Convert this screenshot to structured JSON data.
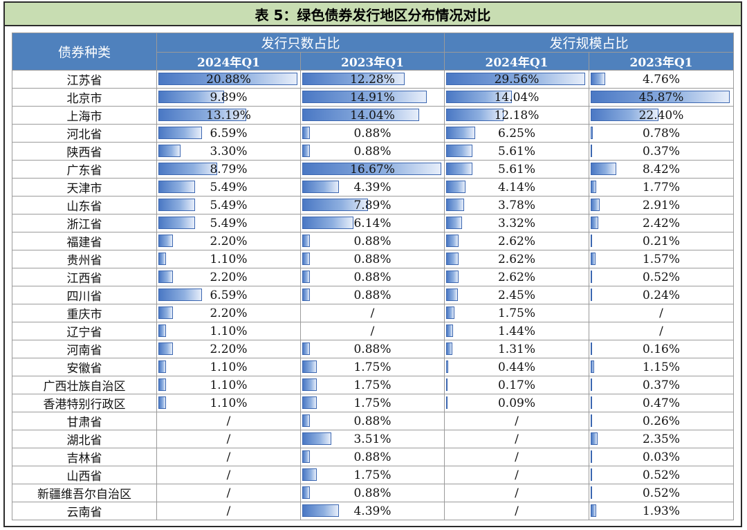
{
  "title": "表 5：绿色债券发行地区分布情况对比",
  "headers": {
    "region": "债券种类",
    "count_group": "发行只数占比",
    "scale_group": "发行规模占比",
    "count_2024": "2024年Q1",
    "count_2023": "2023年Q1",
    "scale_2024": "2024年Q1",
    "scale_2023": "2023年Q1"
  },
  "rows": [
    {
      "region": "江苏省",
      "count_2024": "20.88%",
      "count_2023": "12.28%",
      "scale_2024": "29.56%",
      "scale_2023": "4.76%"
    },
    {
      "region": "北京市",
      "count_2024": "9.89%",
      "count_2023": "14.91%",
      "scale_2024": "14.04%",
      "scale_2023": "45.87%"
    },
    {
      "region": "上海市",
      "count_2024": "13.19%",
      "count_2023": "14.04%",
      "scale_2024": "12.18%",
      "scale_2023": "22.40%"
    },
    {
      "region": "河北省",
      "count_2024": "6.59%",
      "count_2023": "0.88%",
      "scale_2024": "6.25%",
      "scale_2023": "0.78%"
    },
    {
      "region": "陕西省",
      "count_2024": "3.30%",
      "count_2023": "0.88%",
      "scale_2024": "5.61%",
      "scale_2023": "0.37%"
    },
    {
      "region": "广东省",
      "count_2024": "8.79%",
      "count_2023": "16.67%",
      "scale_2024": "5.61%",
      "scale_2023": "8.42%"
    },
    {
      "region": "天津市",
      "count_2024": "5.49%",
      "count_2023": "4.39%",
      "scale_2024": "4.14%",
      "scale_2023": "1.77%"
    },
    {
      "region": "山东省",
      "count_2024": "5.49%",
      "count_2023": "7.89%",
      "scale_2024": "3.78%",
      "scale_2023": "2.91%"
    },
    {
      "region": "浙江省",
      "count_2024": "5.49%",
      "count_2023": "6.14%",
      "scale_2024": "3.32%",
      "scale_2023": "2.42%"
    },
    {
      "region": "福建省",
      "count_2024": "2.20%",
      "count_2023": "0.88%",
      "scale_2024": "2.62%",
      "scale_2023": "0.21%"
    },
    {
      "region": "贵州省",
      "count_2024": "1.10%",
      "count_2023": "0.88%",
      "scale_2024": "2.62%",
      "scale_2023": "1.57%"
    },
    {
      "region": "江西省",
      "count_2024": "2.20%",
      "count_2023": "0.88%",
      "scale_2024": "2.62%",
      "scale_2023": "0.52%"
    },
    {
      "region": "四川省",
      "count_2024": "6.59%",
      "count_2023": "0.88%",
      "scale_2024": "2.45%",
      "scale_2023": "0.24%"
    },
    {
      "region": "重庆市",
      "count_2024": "2.20%",
      "count_2023": "/",
      "scale_2024": "1.75%",
      "scale_2023": "/"
    },
    {
      "region": "辽宁省",
      "count_2024": "1.10%",
      "count_2023": "/",
      "scale_2024": "1.44%",
      "scale_2023": "/"
    },
    {
      "region": "河南省",
      "count_2024": "2.20%",
      "count_2023": "0.88%",
      "scale_2024": "1.31%",
      "scale_2023": "0.16%"
    },
    {
      "region": "安徽省",
      "count_2024": "1.10%",
      "count_2023": "1.75%",
      "scale_2024": "0.44%",
      "scale_2023": "1.15%"
    },
    {
      "region": "广西壮族自治区",
      "count_2024": "1.10%",
      "count_2023": "1.75%",
      "scale_2024": "0.17%",
      "scale_2023": "0.37%"
    },
    {
      "region": "香港特别行政区",
      "count_2024": "1.10%",
      "count_2023": "1.75%",
      "scale_2024": "0.09%",
      "scale_2023": "0.47%"
    },
    {
      "region": "甘肃省",
      "count_2024": "/",
      "count_2023": "0.88%",
      "scale_2024": "/",
      "scale_2023": "0.26%"
    },
    {
      "region": "湖北省",
      "count_2024": "/",
      "count_2023": "3.51%",
      "scale_2024": "/",
      "scale_2023": "2.35%"
    },
    {
      "region": "吉林省",
      "count_2024": "/",
      "count_2023": "0.88%",
      "scale_2024": "/",
      "scale_2023": "0.03%"
    },
    {
      "region": "山西省",
      "count_2024": "/",
      "count_2023": "1.75%",
      "scale_2024": "/",
      "scale_2023": "0.52%"
    },
    {
      "region": "新疆维吾尔自治区",
      "count_2024": "/",
      "count_2023": "0.88%",
      "scale_2024": "/",
      "scale_2023": "0.52%"
    },
    {
      "region": "云南省",
      "count_2024": "/",
      "count_2023": "4.39%",
      "scale_2024": "/",
      "scale_2023": "1.93%"
    }
  ],
  "colors": {
    "header_bg": "#4f81bd",
    "title_bg": "#c8ddb2",
    "bar": "#4a78c4"
  }
}
